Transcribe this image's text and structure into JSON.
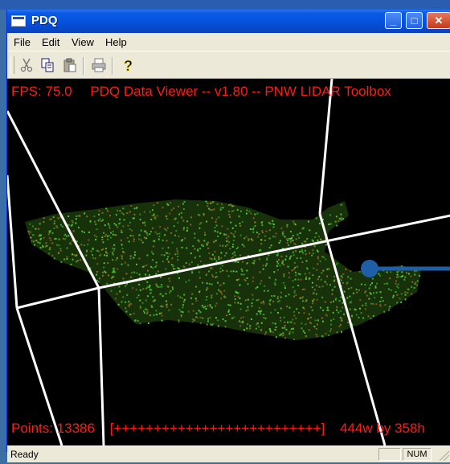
{
  "window": {
    "title": "PDQ"
  },
  "titlebar": {
    "minimize_glyph": "_",
    "maximize_glyph": "□",
    "close_glyph": "✕"
  },
  "menu": [
    "File",
    "Edit",
    "View",
    "Help"
  ],
  "toolbar": {
    "icons": [
      "cut-icon",
      "copy-icon",
      "paste-icon",
      "print-icon",
      "help-icon"
    ],
    "help_glyph": "?"
  },
  "viewer": {
    "fps_label": "FPS: 75.0",
    "title_label": "PDQ Data Viewer -- v1.80 -- PNW LIDAR Toolbox",
    "points_label": "Points: 13386",
    "progress_label": "[++++++++++++++++++++++++++]",
    "size_label": "444w by 358h"
  },
  "status": {
    "text": "Ready",
    "num": "NUM"
  },
  "colors": {
    "hud_text": "#ff1a1a",
    "point_green": "#3fa82a",
    "point_brown": "#7a5a1a",
    "marker": "#1f5fa8"
  }
}
